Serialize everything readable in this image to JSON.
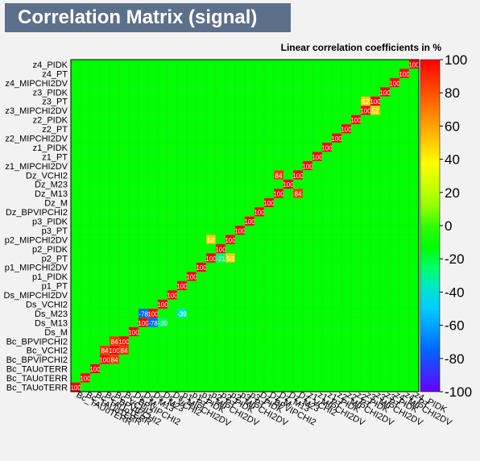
{
  "title": "Correlation Matrix (signal)",
  "chart_data": {
    "type": "heatmap",
    "title": "Correlation Matrix (signal)",
    "subtitle": "Linear correlation coefficients in %",
    "x_labels": [
      "Bc_TAUoTERR",
      "Bc_TAUoTERR",
      "Bc_TAUoTERR",
      "Bc_BPVIPCHI2",
      "Bc_VCHI2",
      "Bc_BPVIPCHI2",
      "Ds_M",
      "Ds_M13",
      "Ds_M23",
      "Ds_VCHI2",
      "Ds_MIPCHI2DV",
      "p1_PT",
      "p1_PIDK",
      "p1_MIPCHI2DV",
      "p2_PT",
      "p2_PIDK",
      "p2_MIPCHI2DV",
      "p3_PT",
      "p3_PIDK",
      "Dz_BPVIPCHI2",
      "Dz_M",
      "Dz_M13",
      "Dz_M23",
      "Dz_VCHI2",
      "z1_MIPCHI2DV",
      "z1_PT",
      "z1_PIDK",
      "z2_MIPCHI2DV",
      "z2_PT",
      "z2_PIDK",
      "z3_MIPCHI2DV",
      "z3_PT",
      "z3_PIDK",
      "z4_MIPCHI2DV",
      "z4_PT",
      "z4_PIDK"
    ],
    "y_labels": [
      "z4_PIDK",
      "z4_PT",
      "z4_MIPCHI2DV",
      "z3_PIDK",
      "z3_PT",
      "z3_MIPCHI2DV",
      "z2_PIDK",
      "z2_PT",
      "z2_MIPCHI2DV",
      "z1_PIDK",
      "z1_PT",
      "z1_MIPCHI2DV",
      "Dz_VCHI2",
      "Dz_M23",
      "Dz_M13",
      "Dz_M",
      "Dz_BPVIPCHI2",
      "p3_PIDK",
      "p3_PT",
      "p2_MIPCHI2DV",
      "p2_PIDK",
      "p2_PT",
      "p1_MIPCHI2DV",
      "p1_PIDK",
      "p1_PT",
      "Ds_MIPCHI2DV",
      "Ds_VCHI2",
      "Ds_M23",
      "Ds_M13",
      "Ds_M",
      "Bc_BPVIPCHI2",
      "Bc_VCHI2",
      "Bc_BPVIPCHI2",
      "Bc_TAUoTERR",
      "Bc_TAUoTERR",
      "Bc_TAUoTERR"
    ],
    "diagonal_value": 100,
    "strong_cells": [
      {
        "x": "Ds_M13",
        "y": "Ds_M23",
        "value": -78
      },
      {
        "x": "Ds_M23",
        "y": "Ds_M13",
        "value": -78
      },
      {
        "x": "Dz_M13",
        "y": "Dz_VCHI2",
        "value": 84
      },
      {
        "x": "Dz_VCHI2",
        "y": "Dz_M13",
        "value": 84
      },
      {
        "x": "Bc_VCHI2",
        "y": "Bc_BPVIPCHI2",
        "value": 84
      },
      {
        "x": "Bc_BPVIPCHI2",
        "y": "Bc_VCHI2",
        "value": 84
      },
      {
        "x": "p2_PT",
        "y": "p2_MIPCHI2DV",
        "value": 50
      },
      {
        "x": "p2_MIPCHI2DV",
        "y": "p2_PT",
        "value": 50
      },
      {
        "x": "z3_PT",
        "y": "z3_MIPCHI2DV",
        "value": 52
      },
      {
        "x": "z3_MIPCHI2DV",
        "y": "z3_PT",
        "value": 52
      },
      {
        "x": "Ds_VCHI2",
        "y": "Ds_M13",
        "value": -30
      },
      {
        "x": "p1_PT",
        "y": "Ds_M23",
        "value": -39
      },
      {
        "x": "p2_PIDK",
        "y": "p2_PT",
        "value": -21
      }
    ],
    "zlim": [
      -100,
      100
    ],
    "colorbar_ticks": [
      100,
      80,
      60,
      40,
      20,
      0,
      -20,
      -40,
      -60,
      -80,
      -100
    ],
    "colorbar_stops": [
      "#6600ff",
      "#3333ff",
      "#0066ff",
      "#0099ff",
      "#00ccff",
      "#00e5cc",
      "#00ff66",
      "#00ff00",
      "#33ff00",
      "#99ff00",
      "#ccff00",
      "#ffff00",
      "#ffcc00",
      "#ff9900",
      "#ff6600",
      "#ff3300",
      "#ff0000"
    ],
    "grid": true
  }
}
